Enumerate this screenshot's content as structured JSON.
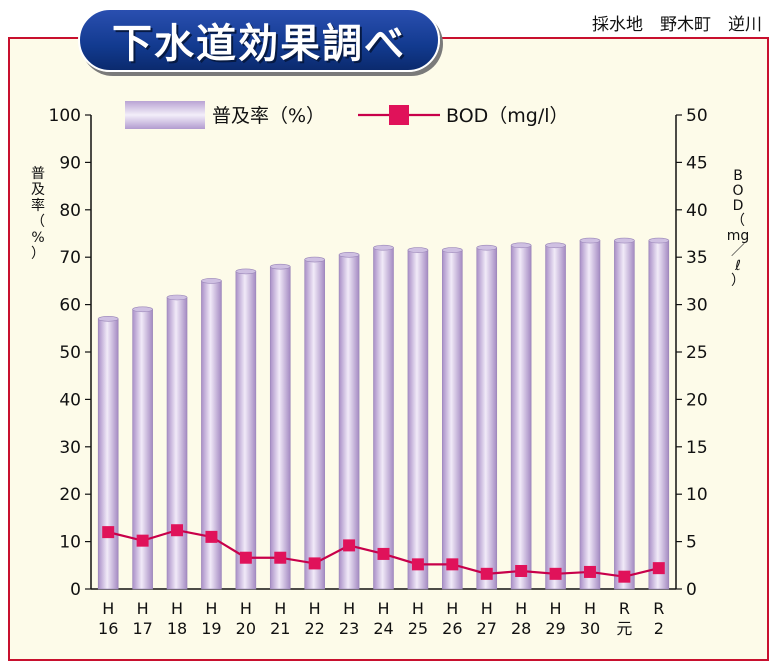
{
  "title": "下水道効果調べ",
  "sampling_location": "採水地　野木町　逆川",
  "colors": {
    "frame": "#c8102e",
    "bar": "#c7b4dc",
    "line": "#c8004a",
    "marker": "#e0125a",
    "title_bg": "#163c92"
  },
  "chart_data": {
    "type": "bar",
    "title": "",
    "categories": [
      [
        "H",
        "16"
      ],
      [
        "H",
        "17"
      ],
      [
        "H",
        "18"
      ],
      [
        "H",
        "19"
      ],
      [
        "H",
        "20"
      ],
      [
        "H",
        "21"
      ],
      [
        "H",
        "22"
      ],
      [
        "H",
        "23"
      ],
      [
        "H",
        "24"
      ],
      [
        "H",
        "25"
      ],
      [
        "H",
        "26"
      ],
      [
        "H",
        "27"
      ],
      [
        "H",
        "28"
      ],
      [
        "H",
        "29"
      ],
      [
        "H",
        "30"
      ],
      [
        "R",
        "元"
      ],
      [
        "R",
        "2"
      ]
    ],
    "ylabel_left": [
      "普",
      "及",
      "率",
      "（",
      "%",
      "）"
    ],
    "ylabel_right": [
      "B",
      "O",
      "D",
      "（",
      "mg",
      "／",
      "ℓ",
      "）"
    ],
    "ylim_left": [
      0,
      100
    ],
    "ylim_right": [
      0,
      50
    ],
    "yticks_left": [
      "0",
      "10",
      "20",
      "30",
      "40",
      "50",
      "60",
      "70",
      "80",
      "90",
      "100"
    ],
    "yticks_right": [
      "0",
      "5",
      "10",
      "15",
      "20",
      "25",
      "30",
      "35",
      "40",
      "45",
      "50"
    ],
    "legend": [
      {
        "name": "普及率（%）",
        "type": "bar"
      },
      {
        "name": "BOD（mg/l）",
        "type": "line"
      }
    ],
    "series": [
      {
        "name": "普及率（%）",
        "axis": "left",
        "type": "bar",
        "values": [
          57,
          59,
          61.5,
          65,
          67,
          68,
          69.5,
          70.5,
          72,
          71.5,
          71.5,
          72,
          72.5,
          72.5,
          73.5,
          73.5,
          73.5
        ]
      },
      {
        "name": "BOD（mg/l）",
        "axis": "right",
        "type": "line",
        "values": [
          6.0,
          5.1,
          6.2,
          5.5,
          3.3,
          3.3,
          2.7,
          4.6,
          3.7,
          2.6,
          2.6,
          1.6,
          1.9,
          1.6,
          1.8,
          1.3,
          2.2
        ]
      }
    ]
  }
}
